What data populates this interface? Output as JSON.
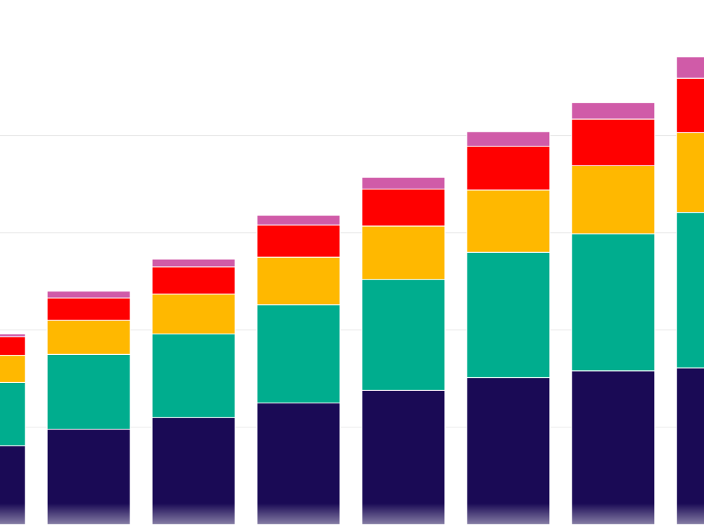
{
  "chart_data": {
    "type": "bar",
    "stacked": true,
    "ylim": [
      0,
      500
    ],
    "y_grid": [
      0,
      100,
      200,
      300,
      400
    ],
    "grid": true,
    "categories": [
      "",
      "",
      "",
      "",
      "",
      "",
      "",
      ""
    ],
    "series": [
      {
        "color": "#1a0a55",
        "values": [
          81,
          98,
          110,
          125,
          138,
          151,
          158,
          161
        ]
      },
      {
        "color": "#00ad8e",
        "values": [
          65,
          77,
          86,
          101,
          114,
          129,
          141,
          160
        ]
      },
      {
        "color": "#ffb800",
        "values": [
          28,
          35,
          41,
          49,
          55,
          64,
          70,
          82
        ]
      },
      {
        "color": "#ff0000",
        "values": [
          19,
          23,
          28,
          33,
          38,
          45,
          48,
          56
        ]
      },
      {
        "color": "#d05ba8",
        "values": [
          3,
          7,
          8,
          10,
          12,
          15,
          17,
          22
        ]
      }
    ]
  }
}
